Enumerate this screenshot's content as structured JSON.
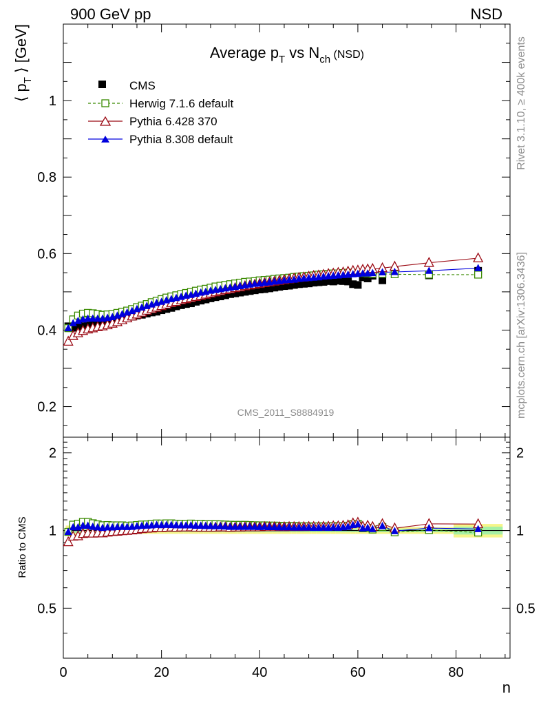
{
  "header": {
    "energy": "900 GeV pp",
    "process": "NSD"
  },
  "side_labels": {
    "rivet": "Rivet 3.1.10, ≥ 400k events",
    "mcplots": "mcplots.cern.ch [arXiv:1306.3436]"
  },
  "chart_data": [
    {
      "type": "scatter",
      "title_main": "Average p",
      "title_sub1": "T",
      "title_mid": " vs N",
      "title_sub2": "ch",
      "title_suffix": " (NSD)",
      "watermark": "CMS_2011_S8884919",
      "ylabel": "⟨ p",
      "ylabel_sub": "T",
      "ylabel_tail": " ⟩ [GeV]",
      "xlim": [
        0,
        91
      ],
      "ylim": [
        0.12,
        1.2
      ],
      "ytick_labels": [
        "0.2",
        "0.4",
        "0.6",
        "0.8",
        "1"
      ],
      "legend_position": "top-left",
      "colors": {
        "cms": "#000000",
        "herwig": "#3a8a00",
        "py6": "#9b0a14",
        "py8": "#0000dd"
      },
      "series": [
        {
          "name": "CMS",
          "style": "square-filled",
          "x": [
            1,
            2,
            3,
            4,
            5,
            6,
            7,
            8,
            9,
            10,
            11,
            12,
            13,
            14,
            15,
            16,
            17,
            18,
            19,
            20,
            21,
            22,
            23,
            24,
            25,
            26,
            27,
            28,
            29,
            30,
            31,
            32,
            33,
            34,
            35,
            36,
            37,
            38,
            39,
            40,
            41,
            42,
            43,
            44,
            45,
            46,
            47,
            48,
            49,
            50,
            51,
            52,
            53,
            54,
            55,
            56,
            57,
            58,
            59,
            60,
            61,
            62,
            63,
            65,
            67.5,
            74.5,
            84.5
          ],
          "y": [
            0.41,
            0.406,
            0.412,
            0.41,
            0.412,
            0.416,
            0.418,
            0.42,
            0.42,
            0.422,
            0.425,
            0.428,
            0.432,
            0.435,
            0.438,
            0.44,
            0.443,
            0.446,
            0.448,
            0.452,
            0.455,
            0.458,
            0.462,
            0.465,
            0.468,
            0.47,
            0.474,
            0.477,
            0.48,
            0.483,
            0.486,
            0.488,
            0.491,
            0.494,
            0.496,
            0.498,
            0.5,
            0.502,
            0.504,
            0.506,
            0.507,
            0.509,
            0.511,
            0.513,
            0.515,
            0.516,
            0.518,
            0.52,
            0.521,
            0.522,
            0.524,
            0.525,
            0.526,
            0.528,
            0.527,
            0.529,
            0.528,
            0.527,
            0.52,
            0.518,
            0.538,
            0.535,
            0.542,
            0.53,
            0.555,
            0.543,
            0.555
          ]
        },
        {
          "name": "Herwig 7.1.6 default",
          "style": "square-open-dashed",
          "x": [
            1,
            2,
            3,
            4,
            5,
            6,
            7,
            8,
            9,
            10,
            11,
            12,
            13,
            14,
            15,
            16,
            17,
            18,
            19,
            20,
            21,
            22,
            23,
            24,
            25,
            26,
            27,
            28,
            29,
            30,
            31,
            32,
            33,
            34,
            35,
            36,
            37,
            38,
            39,
            40,
            41,
            42,
            43,
            44,
            45,
            46,
            47,
            48,
            49,
            50,
            51,
            52,
            53,
            54,
            55,
            56,
            57,
            58,
            59,
            60,
            61,
            62,
            63,
            65,
            67.5,
            74.5,
            84.5
          ],
          "y": [
            0.405,
            0.428,
            0.438,
            0.443,
            0.445,
            0.444,
            0.442,
            0.44,
            0.441,
            0.442,
            0.445,
            0.448,
            0.451,
            0.455,
            0.46,
            0.464,
            0.468,
            0.473,
            0.477,
            0.481,
            0.485,
            0.488,
            0.491,
            0.494,
            0.497,
            0.5,
            0.503,
            0.506,
            0.508,
            0.511,
            0.514,
            0.516,
            0.518,
            0.52,
            0.522,
            0.524,
            0.526,
            0.527,
            0.528,
            0.53,
            0.531,
            0.532,
            0.534,
            0.535,
            0.536,
            0.537,
            0.539,
            0.54,
            0.541,
            0.542,
            0.543,
            0.545,
            0.546,
            0.547,
            0.548,
            0.548,
            0.549,
            0.55,
            0.55,
            0.55,
            0.549,
            0.548,
            0.547,
            0.547,
            0.546,
            0.545,
            0.545
          ]
        },
        {
          "name": "Pythia 6.428 370",
          "style": "triangle-open",
          "x": [
            1,
            2,
            3,
            4,
            5,
            6,
            7,
            8,
            9,
            10,
            11,
            12,
            13,
            14,
            15,
            16,
            17,
            18,
            19,
            20,
            21,
            22,
            23,
            24,
            25,
            26,
            27,
            28,
            29,
            30,
            31,
            32,
            33,
            34,
            35,
            36,
            37,
            38,
            39,
            40,
            41,
            42,
            43,
            44,
            45,
            46,
            47,
            48,
            49,
            50,
            51,
            52,
            53,
            54,
            55,
            56,
            57,
            58,
            59,
            60,
            61,
            62,
            63,
            65,
            67.5,
            74.5,
            84.5
          ],
          "y": [
            0.37,
            0.385,
            0.392,
            0.398,
            0.402,
            0.405,
            0.408,
            0.41,
            0.413,
            0.417,
            0.421,
            0.426,
            0.431,
            0.436,
            0.441,
            0.446,
            0.451,
            0.455,
            0.459,
            0.463,
            0.467,
            0.471,
            0.474,
            0.478,
            0.481,
            0.484,
            0.487,
            0.49,
            0.493,
            0.496,
            0.499,
            0.502,
            0.505,
            0.507,
            0.51,
            0.512,
            0.515,
            0.517,
            0.519,
            0.521,
            0.523,
            0.525,
            0.527,
            0.529,
            0.531,
            0.533,
            0.535,
            0.537,
            0.538,
            0.54,
            0.542,
            0.543,
            0.545,
            0.547,
            0.548,
            0.55,
            0.551,
            0.553,
            0.555,
            0.556,
            0.558,
            0.559,
            0.56,
            0.562,
            0.566,
            0.576,
            0.588
          ]
        },
        {
          "name": "Pythia 8.308 default",
          "style": "triangle-filled",
          "x": [
            1,
            2,
            3,
            4,
            5,
            6,
            7,
            8,
            9,
            10,
            11,
            12,
            13,
            14,
            15,
            16,
            17,
            18,
            19,
            20,
            21,
            22,
            23,
            24,
            25,
            26,
            27,
            28,
            29,
            30,
            31,
            32,
            33,
            34,
            35,
            36,
            37,
            38,
            39,
            40,
            41,
            42,
            43,
            44,
            45,
            46,
            47,
            48,
            49,
            50,
            51,
            52,
            53,
            54,
            55,
            56,
            57,
            58,
            59,
            60,
            61,
            62,
            63,
            65,
            67.5,
            74.5,
            84.5
          ],
          "y": [
            0.405,
            0.418,
            0.424,
            0.428,
            0.43,
            0.43,
            0.43,
            0.43,
            0.432,
            0.434,
            0.438,
            0.442,
            0.446,
            0.45,
            0.455,
            0.459,
            0.463,
            0.467,
            0.471,
            0.474,
            0.478,
            0.481,
            0.484,
            0.487,
            0.49,
            0.492,
            0.495,
            0.498,
            0.5,
            0.503,
            0.505,
            0.507,
            0.509,
            0.511,
            0.513,
            0.515,
            0.517,
            0.519,
            0.521,
            0.522,
            0.524,
            0.525,
            0.527,
            0.528,
            0.53,
            0.531,
            0.532,
            0.534,
            0.535,
            0.536,
            0.537,
            0.538,
            0.54,
            0.541,
            0.542,
            0.543,
            0.544,
            0.545,
            0.546,
            0.547,
            0.548,
            0.548,
            0.549,
            0.551,
            0.552,
            0.555,
            0.562
          ]
        }
      ]
    },
    {
      "type": "scatter",
      "ylabel": "Ratio to CMS",
      "xlabel": "n",
      "xlim": [
        0,
        91
      ],
      "ylim": [
        0.32,
        2.3
      ],
      "xtick_labels": [
        "0",
        "20",
        "40",
        "60",
        "80"
      ],
      "ytick_labels": [
        "0.5",
        "1",
        "2"
      ],
      "ytick_labels_right": [
        "0.5",
        "1",
        "2"
      ],
      "band_colors": {
        "inner": "#a6f0a6",
        "outer": "#f5f58a"
      },
      "series": [
        {
          "name": "Herwig 7.1.6 default",
          "y": [
            0.988,
            1.054,
            1.063,
            1.08,
            1.08,
            1.067,
            1.057,
            1.048,
            1.05,
            1.047,
            1.047,
            1.047,
            1.044,
            1.046,
            1.05,
            1.055,
            1.056,
            1.061,
            1.065,
            1.064,
            1.066,
            1.066,
            1.063,
            1.062,
            1.062,
            1.064,
            1.061,
            1.061,
            1.058,
            1.058,
            1.058,
            1.057,
            1.055,
            1.053,
            1.052,
            1.052,
            1.052,
            1.05,
            1.048,
            1.047,
            1.047,
            1.045,
            1.045,
            1.043,
            1.041,
            1.041,
            1.041,
            1.038,
            1.038,
            1.038,
            1.036,
            1.038,
            1.038,
            1.036,
            1.04,
            1.036,
            1.04,
            1.044,
            1.058,
            1.062,
            1.02,
            1.024,
            1.009,
            1.032,
            0.984,
            1.004,
            0.982
          ]
        },
        {
          "name": "Pythia 6.428 370",
          "y": [
            0.902,
            0.948,
            0.951,
            0.971,
            0.976,
            0.974,
            0.976,
            0.976,
            0.983,
            0.988,
            0.991,
            0.995,
            0.998,
            1.002,
            1.007,
            1.014,
            1.018,
            1.02,
            1.025,
            1.024,
            1.026,
            1.028,
            1.026,
            1.028,
            1.028,
            1.03,
            1.027,
            1.027,
            1.027,
            1.027,
            1.027,
            1.029,
            1.029,
            1.026,
            1.028,
            1.028,
            1.03,
            1.03,
            1.03,
            1.03,
            1.032,
            1.031,
            1.031,
            1.031,
            1.031,
            1.033,
            1.033,
            1.033,
            1.033,
            1.034,
            1.034,
            1.034,
            1.036,
            1.036,
            1.04,
            1.04,
            1.044,
            1.049,
            1.067,
            1.073,
            1.037,
            1.045,
            1.033,
            1.06,
            1.02,
            1.061,
            1.059
          ]
        },
        {
          "name": "Pythia 8.308 default",
          "y": [
            0.988,
            1.03,
            1.029,
            1.044,
            1.044,
            1.034,
            1.029,
            1.024,
            1.029,
            1.028,
            1.031,
            1.033,
            1.032,
            1.034,
            1.039,
            1.043,
            1.045,
            1.047,
            1.051,
            1.049,
            1.051,
            1.05,
            1.048,
            1.047,
            1.047,
            1.047,
            1.044,
            1.044,
            1.042,
            1.041,
            1.039,
            1.039,
            1.037,
            1.034,
            1.034,
            1.034,
            1.034,
            1.034,
            1.034,
            1.032,
            1.034,
            1.031,
            1.031,
            1.029,
            1.029,
            1.029,
            1.027,
            1.027,
            1.027,
            1.027,
            1.025,
            1.025,
            1.027,
            1.025,
            1.028,
            1.026,
            1.03,
            1.034,
            1.05,
            1.056,
            1.019,
            1.024,
            1.013,
            1.04,
            0.995,
            1.022,
            1.013
          ]
        }
      ]
    }
  ]
}
